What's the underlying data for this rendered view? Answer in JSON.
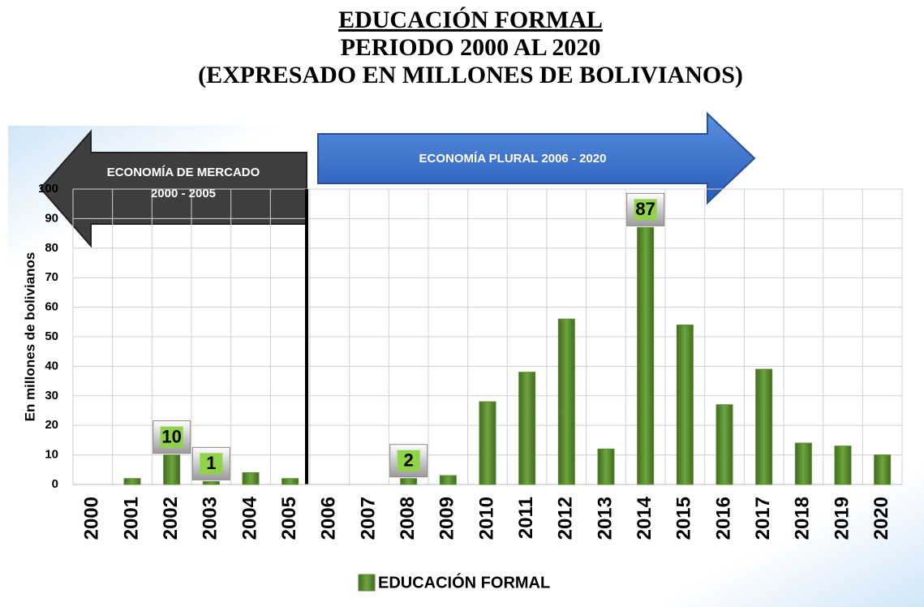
{
  "chart_data": {
    "type": "bar",
    "title": [
      "EDUCACIÓN FORMAL",
      "PERIODO 2000 AL 2020",
      "(EXPRESADO EN MILLONES DE BOLIVIANOS)"
    ],
    "ylabel": "En millones de bolivianos",
    "annotations": [
      [
        "ECONOMÍA DE MERCADO",
        "2000 - 2005"
      ],
      [
        "ECONOMÍA PLURAL 2006  - 2020"
      ]
    ],
    "categories": [
      "2000",
      "2001",
      "2002",
      "2003",
      "2004",
      "2005",
      "2006",
      "2007",
      "2008",
      "2009",
      "2010",
      "2011",
      "2012",
      "2013",
      "2014",
      "2015",
      "2016",
      "2017",
      "2018",
      "2019",
      "2020"
    ],
    "series": [
      {
        "name": "EDUCACIÓN FORMAL",
        "color": "#5a8a32",
        "values": [
          0,
          2,
          10,
          1,
          4,
          2,
          0,
          0,
          2,
          3,
          28,
          38,
          56,
          12,
          87,
          54,
          27,
          39,
          14,
          13,
          10
        ],
        "value_labels": [
          null,
          null,
          "10",
          "1",
          null,
          null,
          null,
          null,
          "2",
          null,
          null,
          null,
          null,
          null,
          "87",
          null,
          null,
          null,
          null,
          null,
          null
        ]
      }
    ],
    "ylim": [
      0,
      100
    ],
    "yticks": [
      0,
      10,
      20,
      30,
      40,
      50,
      60,
      70,
      80,
      90,
      100
    ],
    "grid": true
  }
}
